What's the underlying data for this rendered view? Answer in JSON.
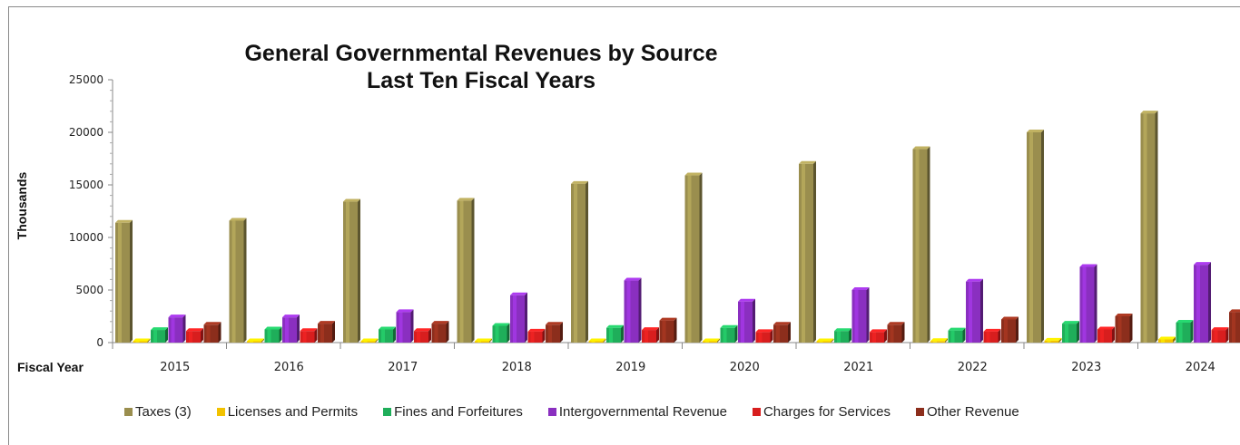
{
  "chart_data": {
    "type": "bar",
    "title": [
      "General Governmental Revenues by Source",
      "Last Ten Fiscal Years"
    ],
    "xlabel": "Fiscal Year",
    "ylabel": "Thousands",
    "ylim": [
      0,
      25000
    ],
    "yticks": [
      "0",
      "5000",
      "10000",
      "15000",
      "20000",
      "25000"
    ],
    "categories": [
      "2015",
      "2016",
      "2017",
      "2018",
      "2019",
      "2020",
      "2021",
      "2022",
      "2023",
      "2024"
    ],
    "legend_position": "bottom",
    "series": [
      {
        "name": "Taxes (3)",
        "color": "#9a8e4e",
        "values": [
          11400,
          11600,
          13400,
          13500,
          15100,
          15900,
          17000,
          18400,
          20000,
          21800
        ]
      },
      {
        "name": "Licenses and Permits",
        "color": "#f2c200",
        "values": [
          50,
          60,
          70,
          80,
          90,
          100,
          120,
          150,
          180,
          300
        ]
      },
      {
        "name": "Fines and Forfeitures",
        "color": "#1fae5a",
        "values": [
          1200,
          1250,
          1250,
          1600,
          1400,
          1400,
          1100,
          1150,
          1800,
          1900
        ]
      },
      {
        "name": "Intergovernmental Revenue",
        "color": "#8a2fc0",
        "values": [
          2400,
          2400,
          2900,
          4500,
          5900,
          3900,
          5000,
          5800,
          7200,
          7400
        ]
      },
      {
        "name": "Charges for Services",
        "color": "#d81e1e",
        "values": [
          1100,
          1100,
          1100,
          1050,
          1200,
          1000,
          1000,
          1050,
          1250,
          1200
        ]
      },
      {
        "name": "Other Revenue",
        "color": "#8c2e1c",
        "values": [
          1700,
          1800,
          1800,
          1700,
          2100,
          1700,
          1700,
          2200,
          2500,
          2900
        ]
      }
    ]
  }
}
